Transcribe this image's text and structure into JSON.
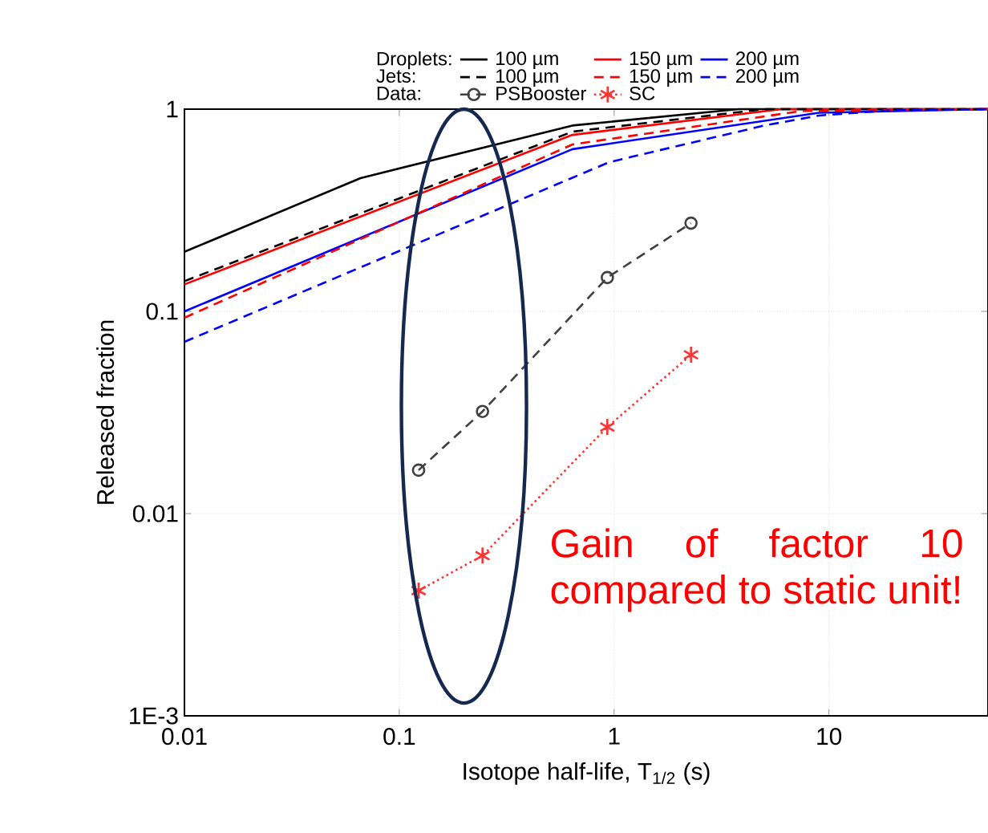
{
  "chart_data": {
    "type": "line",
    "xlabel": "Isotope half-life, T$_{1/2}$ (s)",
    "ylabel": "Released fraction",
    "log": "xy",
    "grid": true,
    "legend": "top",
    "xlim": [
      0.01,
      55
    ],
    "ylim": [
      0.001,
      1
    ],
    "xticks": [
      0.01,
      0.1,
      1,
      10
    ],
    "yticks": [
      {
        "value": 0.001,
        "label": "1E-3"
      },
      0.01,
      0.1,
      1
    ],
    "annotations": [
      "Droplets:",
      "Jets:",
      "Data:",
      "Gain of factor 10 compared to static unit!"
    ],
    "series": [
      {
        "name": "100 µm",
        "color": "#000000",
        "line_style": "solid",
        "marker": "none",
        "x": [
          0.01,
          0.066,
          0.64,
          3.8,
          55
        ],
        "values": [
          0.197,
          0.456,
          0.83,
          1,
          1
        ]
      },
      {
        "name": "150 µm",
        "color": "#ff0000",
        "line_style": "solid",
        "marker": "none",
        "x": [
          0.01,
          0.64,
          6,
          55
        ],
        "values": [
          0.136,
          0.746,
          1,
          1
        ]
      },
      {
        "name": "200 µm",
        "color": "#0000ff",
        "line_style": "solid",
        "marker": "none",
        "x": [
          0.01,
          0.64,
          9,
          55
        ],
        "values": [
          0.1,
          0.634,
          0.96,
          1
        ]
      },
      {
        "name": "100 µm",
        "color": "#000000",
        "line_style": "dashed",
        "marker": "none",
        "x": [
          0.01,
          0.64,
          5,
          55
        ],
        "values": [
          0.141,
          0.774,
          1,
          1
        ]
      },
      {
        "name": "150 µm",
        "color": "#ff0000",
        "line_style": "dashed",
        "marker": "none",
        "x": [
          0.01,
          0.64,
          7.5,
          55
        ],
        "values": [
          0.093,
          0.669,
          0.98,
          1
        ]
      },
      {
        "name": "200 µm",
        "color": "#0000ff",
        "line_style": "dashed",
        "marker": "none",
        "x": [
          0.01,
          0.95,
          5,
          9,
          20,
          55
        ],
        "values": [
          0.0707,
          0.547,
          0.83,
          0.93,
          0.99,
          1
        ]
      },
      {
        "name": "PSBooster",
        "color": "#404040",
        "line_style": "dashed",
        "marker": "circle",
        "x": [
          0.123,
          0.244,
          0.93,
          2.28
        ],
        "values": [
          0.0164,
          0.032,
          0.147,
          0.273
        ]
      },
      {
        "name": "SC",
        "color": "#ff3333",
        "line_style": "dotted",
        "marker": "cross",
        "x": [
          0.123,
          0.244,
          0.93,
          2.28
        ],
        "values": [
          0.00416,
          0.0062,
          0.0268,
          0.061
        ]
      }
    ]
  }
}
